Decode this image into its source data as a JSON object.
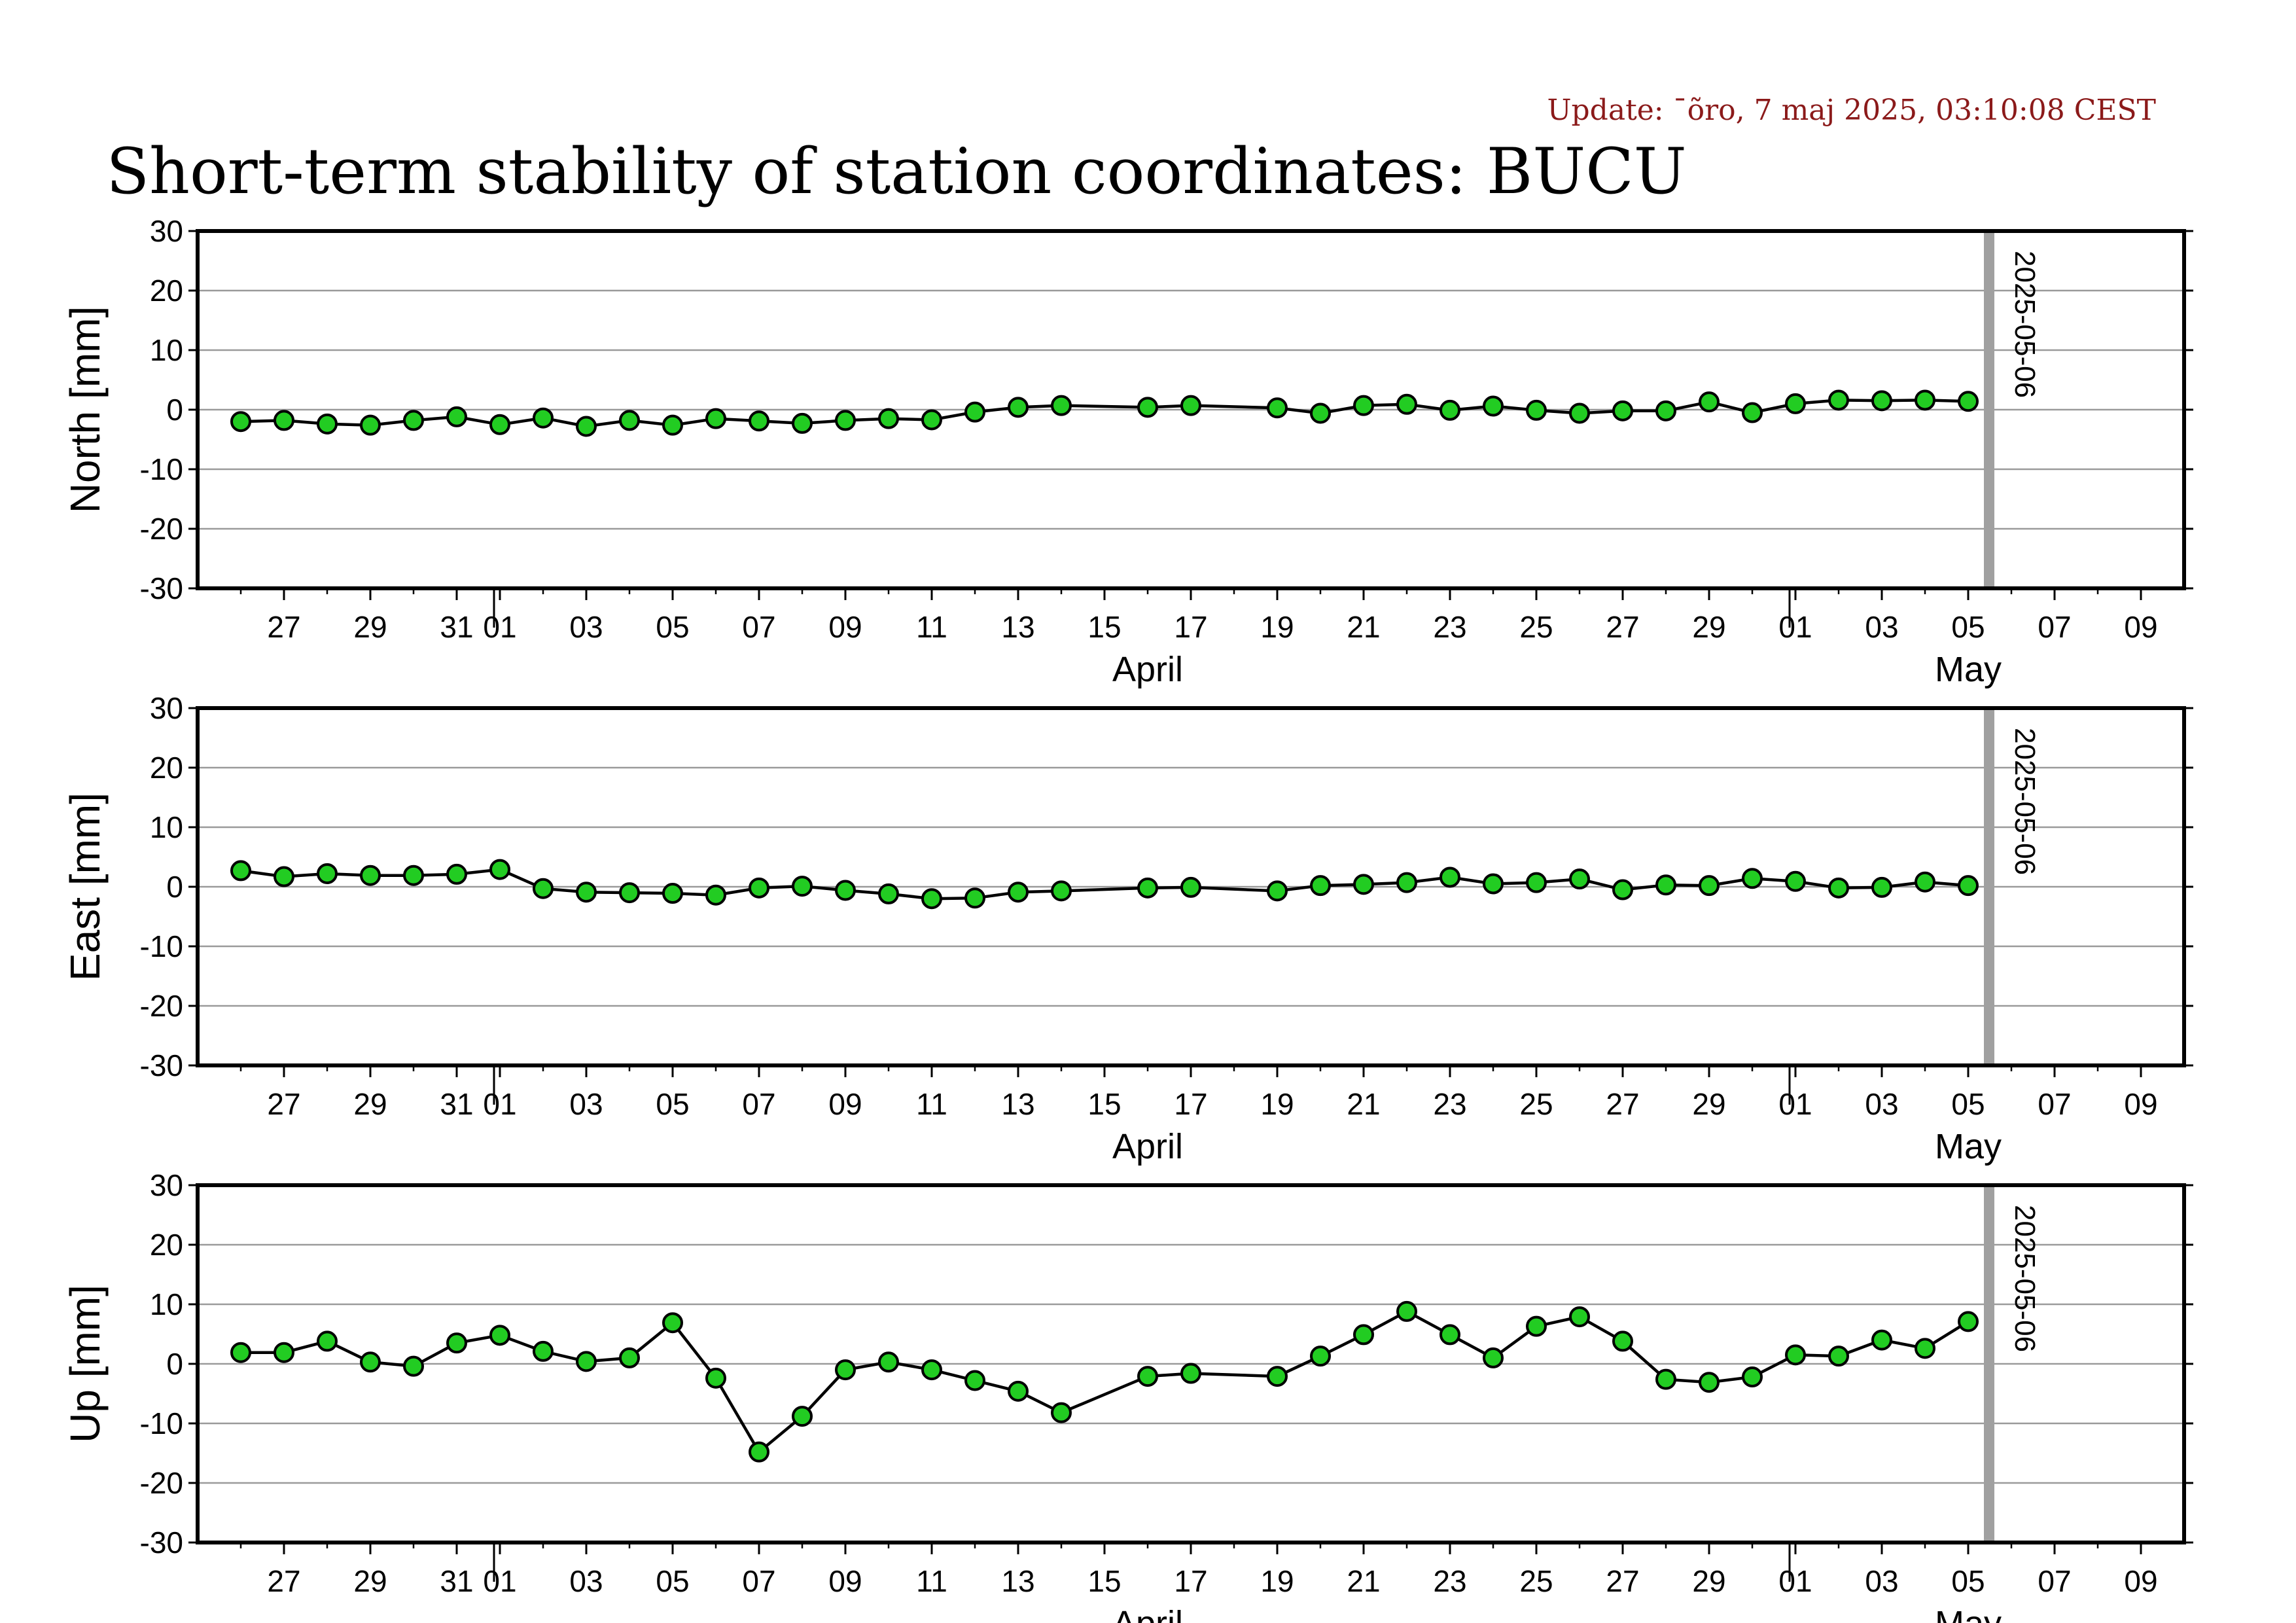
{
  "update_text": "Update: ¯õro, 7 maj 2025, 03:10:08 CEST",
  "title": "Short-term stability of station coordinates: BUCU",
  "colors": {
    "marker_fill": "#22cc22",
    "marker_stroke": "#000000",
    "grid": "#9a9a9a",
    "vline": "#a0a0a0",
    "update": "#8b1a1a"
  },
  "chart_data": {
    "type": "line",
    "x_axis": {
      "range": [
        "2025-03-25",
        "2025-05-10"
      ],
      "tick_labels": [
        {
          "date": "2025-03-27",
          "label": "27"
        },
        {
          "date": "2025-03-29",
          "label": "29"
        },
        {
          "date": "2025-03-31",
          "label": "31"
        },
        {
          "date": "2025-04-01",
          "label": "01"
        },
        {
          "date": "2025-04-03",
          "label": "03"
        },
        {
          "date": "2025-04-05",
          "label": "05"
        },
        {
          "date": "2025-04-07",
          "label": "07"
        },
        {
          "date": "2025-04-09",
          "label": "09"
        },
        {
          "date": "2025-04-11",
          "label": "11"
        },
        {
          "date": "2025-04-13",
          "label": "13"
        },
        {
          "date": "2025-04-15",
          "label": "15"
        },
        {
          "date": "2025-04-17",
          "label": "17"
        },
        {
          "date": "2025-04-19",
          "label": "19"
        },
        {
          "date": "2025-04-21",
          "label": "21"
        },
        {
          "date": "2025-04-23",
          "label": "23"
        },
        {
          "date": "2025-04-25",
          "label": "25"
        },
        {
          "date": "2025-04-27",
          "label": "27"
        },
        {
          "date": "2025-04-29",
          "label": "29"
        },
        {
          "date": "2025-05-01",
          "label": "01"
        },
        {
          "date": "2025-05-03",
          "label": "03"
        },
        {
          "date": "2025-05-05",
          "label": "05"
        },
        {
          "date": "2025-05-07",
          "label": "07"
        },
        {
          "date": "2025-05-09",
          "label": "09"
        }
      ],
      "month_labels": [
        {
          "date": "2025-04-16",
          "label": "April"
        },
        {
          "date": "2025-05-05",
          "label": "May"
        }
      ],
      "month_boundaries": [
        "2025-04-01",
        "2025-05-01"
      ]
    },
    "vertical_marker": {
      "date": "2025-05-06",
      "label": "2025-05-06"
    },
    "panels": [
      {
        "ylabel": "North [mm]",
        "ylim": [
          -30,
          30
        ],
        "yticks": [
          -30,
          -20,
          -10,
          0,
          10,
          20,
          30
        ],
        "grid": true,
        "points": [
          [
            "2025-03-26",
            -2.0
          ],
          [
            "2025-03-27",
            -1.8
          ],
          [
            "2025-03-28",
            -2.4
          ],
          [
            "2025-03-29",
            -2.6
          ],
          [
            "2025-03-30",
            -1.8
          ],
          [
            "2025-03-31",
            -1.2
          ],
          [
            "2025-04-01",
            -2.5
          ],
          [
            "2025-04-02",
            -1.4
          ],
          [
            "2025-04-03",
            -2.8
          ],
          [
            "2025-04-04",
            -1.8
          ],
          [
            "2025-04-05",
            -2.6
          ],
          [
            "2025-04-06",
            -1.5
          ],
          [
            "2025-04-07",
            -1.9
          ],
          [
            "2025-04-08",
            -2.3
          ],
          [
            "2025-04-09",
            -1.8
          ],
          [
            "2025-04-10",
            -1.5
          ],
          [
            "2025-04-11",
            -1.7
          ],
          [
            "2025-04-12",
            -0.4
          ],
          [
            "2025-04-13",
            0.4
          ],
          [
            "2025-04-14",
            0.7
          ],
          [
            "2025-04-16",
            0.4
          ],
          [
            "2025-04-17",
            0.7
          ],
          [
            "2025-04-19",
            0.3
          ],
          [
            "2025-04-20",
            -0.6
          ],
          [
            "2025-04-21",
            0.7
          ],
          [
            "2025-04-22",
            0.9
          ],
          [
            "2025-04-23",
            -0.1
          ],
          [
            "2025-04-24",
            0.6
          ],
          [
            "2025-04-25",
            -0.1
          ],
          [
            "2025-04-26",
            -0.6
          ],
          [
            "2025-04-27",
            -0.2
          ],
          [
            "2025-04-28",
            -0.2
          ],
          [
            "2025-04-29",
            1.3
          ],
          [
            "2025-04-30",
            -0.5
          ],
          [
            "2025-05-01",
            1.0
          ],
          [
            "2025-05-02",
            1.6
          ],
          [
            "2025-05-03",
            1.5
          ],
          [
            "2025-05-04",
            1.6
          ],
          [
            "2025-05-05",
            1.4
          ]
        ]
      },
      {
        "ylabel": "East [mm]",
        "ylim": [
          -30,
          30
        ],
        "yticks": [
          -30,
          -20,
          -10,
          0,
          10,
          20,
          30
        ],
        "grid": true,
        "points": [
          [
            "2025-03-26",
            2.7
          ],
          [
            "2025-03-27",
            1.7
          ],
          [
            "2025-03-28",
            2.2
          ],
          [
            "2025-03-29",
            1.9
          ],
          [
            "2025-03-30",
            1.9
          ],
          [
            "2025-03-31",
            2.1
          ],
          [
            "2025-04-01",
            2.9
          ],
          [
            "2025-04-02",
            -0.3
          ],
          [
            "2025-04-03",
            -0.9
          ],
          [
            "2025-04-04",
            -1.0
          ],
          [
            "2025-04-05",
            -1.1
          ],
          [
            "2025-04-06",
            -1.4
          ],
          [
            "2025-04-07",
            -0.2
          ],
          [
            "2025-04-08",
            0.1
          ],
          [
            "2025-04-09",
            -0.6
          ],
          [
            "2025-04-10",
            -1.2
          ],
          [
            "2025-04-11",
            -2.0
          ],
          [
            "2025-04-12",
            -1.9
          ],
          [
            "2025-04-13",
            -0.9
          ],
          [
            "2025-04-14",
            -0.7
          ],
          [
            "2025-04-16",
            -0.2
          ],
          [
            "2025-04-17",
            -0.1
          ],
          [
            "2025-04-19",
            -0.7
          ],
          [
            "2025-04-20",
            0.2
          ],
          [
            "2025-04-21",
            0.4
          ],
          [
            "2025-04-22",
            0.7
          ],
          [
            "2025-04-23",
            1.6
          ],
          [
            "2025-04-24",
            0.5
          ],
          [
            "2025-04-25",
            0.7
          ],
          [
            "2025-04-26",
            1.3
          ],
          [
            "2025-04-27",
            -0.5
          ],
          [
            "2025-04-28",
            0.3
          ],
          [
            "2025-04-29",
            0.2
          ],
          [
            "2025-04-30",
            1.4
          ],
          [
            "2025-05-01",
            0.9
          ],
          [
            "2025-05-02",
            -0.2
          ],
          [
            "2025-05-03",
            -0.1
          ],
          [
            "2025-05-04",
            0.8
          ],
          [
            "2025-05-05",
            0.2
          ]
        ]
      },
      {
        "ylabel": "Up [mm]",
        "ylim": [
          -30,
          30
        ],
        "yticks": [
          -30,
          -20,
          -10,
          0,
          10,
          20,
          30
        ],
        "grid": true,
        "points": [
          [
            "2025-03-26",
            1.9
          ],
          [
            "2025-03-27",
            1.9
          ],
          [
            "2025-03-28",
            3.8
          ],
          [
            "2025-03-29",
            0.3
          ],
          [
            "2025-03-30",
            -0.4
          ],
          [
            "2025-03-31",
            3.5
          ],
          [
            "2025-04-01",
            4.8
          ],
          [
            "2025-04-02",
            2.1
          ],
          [
            "2025-04-03",
            0.4
          ],
          [
            "2025-04-04",
            1.0
          ],
          [
            "2025-04-05",
            6.9
          ],
          [
            "2025-04-06",
            -2.4
          ],
          [
            "2025-04-07",
            -14.8
          ],
          [
            "2025-04-08",
            -8.8
          ],
          [
            "2025-04-09",
            -1.0
          ],
          [
            "2025-04-10",
            0.3
          ],
          [
            "2025-04-11",
            -1.0
          ],
          [
            "2025-04-12",
            -2.8
          ],
          [
            "2025-04-13",
            -4.6
          ],
          [
            "2025-04-14",
            -8.2
          ],
          [
            "2025-04-16",
            -2.1
          ],
          [
            "2025-04-17",
            -1.6
          ],
          [
            "2025-04-19",
            -2.1
          ],
          [
            "2025-04-20",
            1.3
          ],
          [
            "2025-04-21",
            4.9
          ],
          [
            "2025-04-22",
            8.8
          ],
          [
            "2025-04-23",
            4.9
          ],
          [
            "2025-04-24",
            1.0
          ],
          [
            "2025-04-25",
            6.3
          ],
          [
            "2025-04-26",
            7.9
          ],
          [
            "2025-04-27",
            3.8
          ],
          [
            "2025-04-28",
            -2.6
          ],
          [
            "2025-04-29",
            -3.1
          ],
          [
            "2025-04-30",
            -2.2
          ],
          [
            "2025-05-01",
            1.5
          ],
          [
            "2025-05-02",
            1.3
          ],
          [
            "2025-05-03",
            4.0
          ],
          [
            "2025-05-04",
            2.6
          ],
          [
            "2025-05-05",
            7.1
          ]
        ]
      }
    ]
  }
}
